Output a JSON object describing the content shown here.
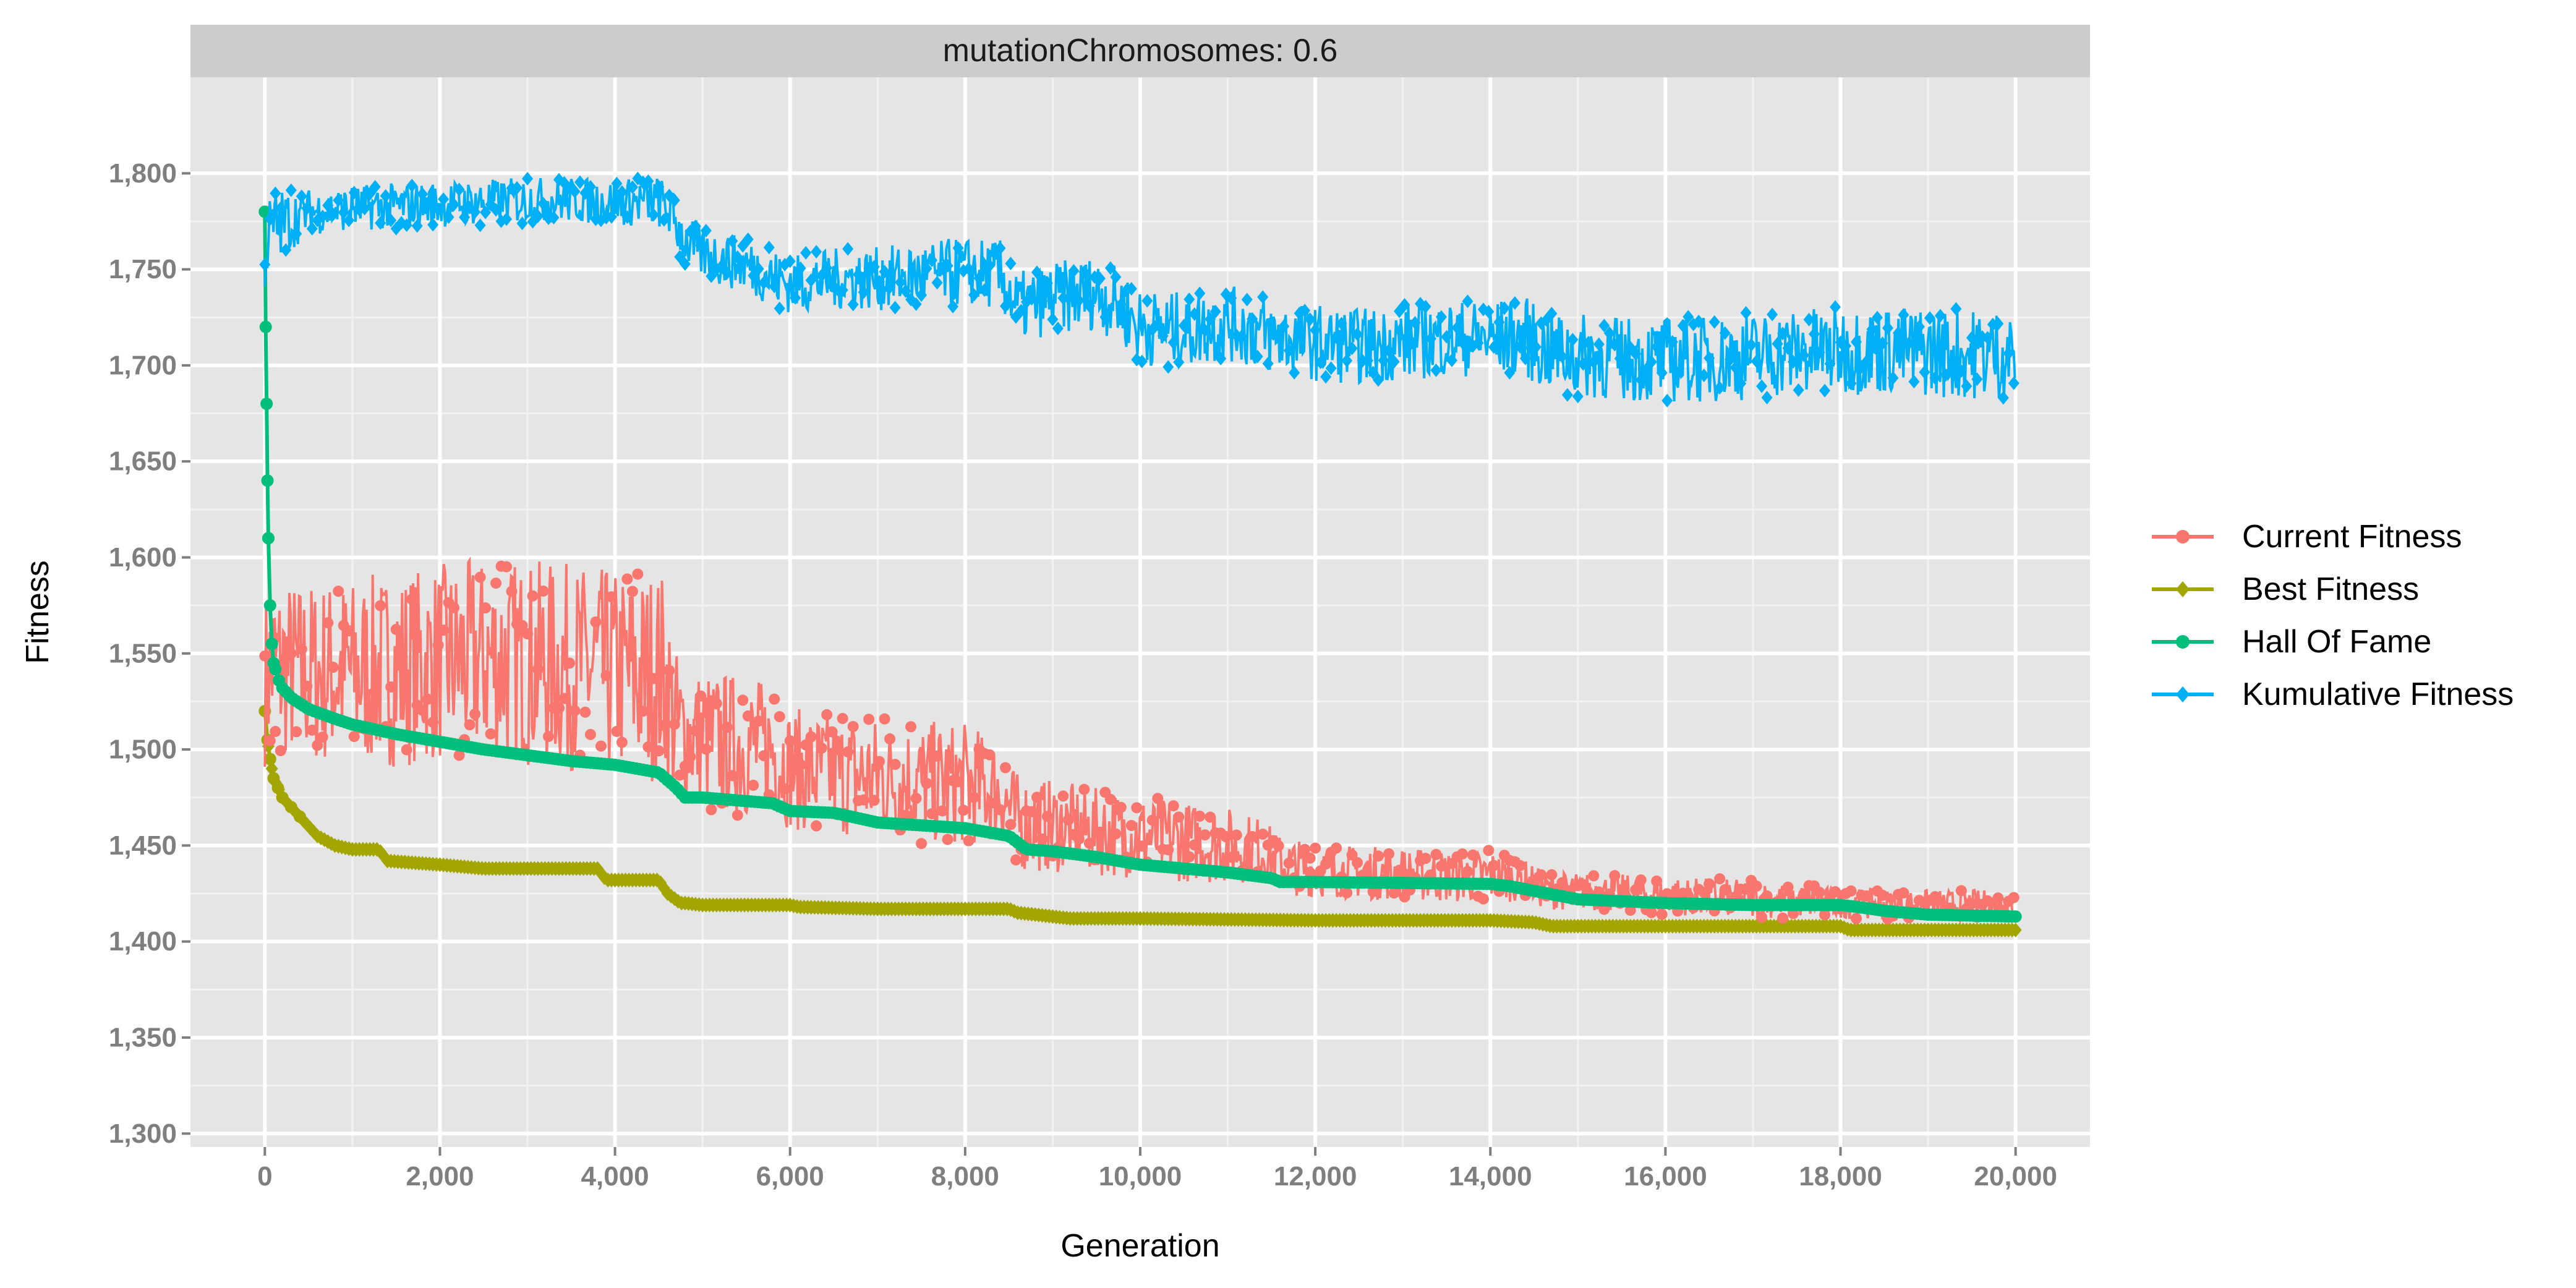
{
  "chart_data": {
    "type": "line",
    "facet_label": "mutationChromosomes: 0.6",
    "xlabel": "Generation",
    "ylabel": "Fitness",
    "xlim": [
      -850,
      20850
    ],
    "ylim": [
      1293,
      1850
    ],
    "x_ticks": [
      0,
      2000,
      4000,
      6000,
      8000,
      10000,
      12000,
      14000,
      16000,
      18000,
      20000
    ],
    "x_tick_labels": [
      "0",
      "2,000",
      "4,000",
      "6,000",
      "8,000",
      "10,000",
      "12,000",
      "14,000",
      "16,000",
      "18,000",
      "20,000"
    ],
    "y_ticks": [
      1300,
      1350,
      1400,
      1450,
      1500,
      1550,
      1600,
      1650,
      1700,
      1750,
      1800
    ],
    "y_tick_labels": [
      "1,300",
      "1,350",
      "1,400",
      "1,450",
      "1,500",
      "1,550",
      "1,600",
      "1,650",
      "1,700",
      "1,750",
      "1,800"
    ],
    "grid": true,
    "legend_position": "right",
    "series": [
      {
        "name": "Current Fitness",
        "color": "#F8766D",
        "marker": "circle",
        "band_spread": [
          [
            0,
            44
          ],
          [
            300,
            48
          ],
          [
            1000,
            50
          ],
          [
            2000,
            52
          ],
          [
            3000,
            54
          ],
          [
            4000,
            54
          ],
          [
            4500,
            56
          ],
          [
            4800,
            36
          ],
          [
            5500,
            38
          ],
          [
            6000,
            32
          ],
          [
            7000,
            32
          ],
          [
            8000,
            32
          ],
          [
            8500,
            26
          ],
          [
            9000,
            24
          ],
          [
            10000,
            22
          ],
          [
            11000,
            20
          ],
          [
            11500,
            16
          ],
          [
            12000,
            14
          ],
          [
            13000,
            14
          ],
          [
            14000,
            14
          ],
          [
            14500,
            10
          ],
          [
            15000,
            10
          ],
          [
            16000,
            10
          ],
          [
            17000,
            10
          ],
          [
            18000,
            8
          ],
          [
            19000,
            8
          ],
          [
            20000,
            8
          ]
        ],
        "x": [
          0,
          50,
          100,
          200,
          400,
          700,
          1000,
          1500,
          2000,
          2500,
          3000,
          3500,
          4000,
          4300,
          4550,
          4700,
          5000,
          5500,
          5800,
          6000,
          6500,
          7000,
          7500,
          8000,
          8400,
          8600,
          9000,
          9500,
          10000,
          10500,
          11000,
          11400,
          11600,
          12000,
          12500,
          13000,
          13500,
          14000,
          14400,
          14600,
          15000,
          15500,
          16000,
          16500,
          17000,
          17500,
          18000,
          18500,
          19000,
          19500,
          20000
        ],
        "values": [
          1535,
          1540,
          1545,
          1542,
          1540,
          1540,
          1540,
          1542,
          1545,
          1547,
          1545,
          1543,
          1540,
          1538,
          1540,
          1510,
          1505,
          1502,
          1500,
          1490,
          1487,
          1485,
          1483,
          1482,
          1478,
          1462,
          1460,
          1457,
          1455,
          1452,
          1450,
          1448,
          1440,
          1437,
          1436,
          1435,
          1434,
          1434,
          1432,
          1427,
          1426,
          1425,
          1424,
          1423,
          1422,
          1421,
          1420,
          1419,
          1419,
          1419,
          1419
        ]
      },
      {
        "name": "Best Fitness",
        "color": "#A3A500",
        "marker": "diamond",
        "x": [
          0,
          30,
          60,
          100,
          150,
          200,
          300,
          400,
          500,
          600,
          800,
          1000,
          1300,
          1400,
          2000,
          2500,
          3000,
          3800,
          3900,
          4500,
          4600,
          4750,
          4800,
          5000,
          6000,
          6100,
          7000,
          8000,
          8500,
          8600,
          9000,
          9200,
          10000,
          12000,
          14000,
          14500,
          14700,
          15000,
          16000,
          18000,
          18100,
          20000
        ],
        "values": [
          1520,
          1505,
          1495,
          1485,
          1480,
          1475,
          1470,
          1465,
          1460,
          1455,
          1450,
          1448,
          1448,
          1442,
          1440,
          1438,
          1438,
          1438,
          1432,
          1432,
          1425,
          1420,
          1420,
          1419,
          1419,
          1418,
          1417,
          1417,
          1417,
          1415,
          1413,
          1412,
          1412,
          1411,
          1411,
          1410,
          1408,
          1408,
          1408,
          1408,
          1406,
          1406
        ]
      },
      {
        "name": "Hall Of Fame",
        "color": "#00BF7D",
        "marker": "circle",
        "x": [
          0,
          10,
          20,
          30,
          40,
          60,
          80,
          100,
          150,
          200,
          300,
          500,
          800,
          1000,
          1500,
          2000,
          2500,
          3000,
          3500,
          4000,
          4500,
          4700,
          4800,
          5000,
          5800,
          6000,
          6500,
          7000,
          8000,
          8500,
          8700,
          9000,
          9500,
          10000,
          11000,
          11500,
          11600,
          12000,
          14000,
          14200,
          15000,
          16000,
          17000,
          18000,
          18200,
          18500,
          19000,
          20000
        ],
        "values": [
          1780,
          1720,
          1680,
          1640,
          1610,
          1575,
          1555,
          1545,
          1537,
          1532,
          1527,
          1521,
          1516,
          1513,
          1508,
          1504,
          1500,
          1497,
          1494,
          1492,
          1488,
          1480,
          1475,
          1475,
          1472,
          1468,
          1467,
          1462,
          1459,
          1455,
          1448,
          1447,
          1444,
          1440,
          1436,
          1433,
          1431,
          1431,
          1430,
          1429,
          1422,
          1420,
          1419,
          1419,
          1418,
          1416,
          1414,
          1413
        ]
      },
      {
        "name": "Kumulative Fitness",
        "color": "#00B0F6",
        "marker": "diamond",
        "band_spread": [
          [
            0,
            22
          ],
          [
            500,
            12
          ],
          [
            2000,
            12
          ],
          [
            4000,
            12
          ],
          [
            4600,
            14
          ],
          [
            5000,
            14
          ],
          [
            8000,
            18
          ],
          [
            10000,
            20
          ],
          [
            14000,
            20
          ],
          [
            15000,
            22
          ],
          [
            20000,
            24
          ]
        ],
        "x": [
          0,
          50,
          100,
          300,
          500,
          1000,
          1500,
          2000,
          2500,
          3000,
          3500,
          4000,
          4500,
          4600,
          4800,
          5000,
          5500,
          6000,
          6500,
          7000,
          7500,
          8000,
          8400,
          8600,
          9000,
          9500,
          9800,
          10000,
          10500,
          11000,
          11500,
          12000,
          12500,
          13000,
          13500,
          14000,
          14400,
          14600,
          15000,
          15500,
          16000,
          16500,
          17000,
          17500,
          18000,
          18500,
          19000,
          19500,
          20000
        ],
        "values": [
          1760,
          1768,
          1772,
          1776,
          1780,
          1782,
          1783,
          1784,
          1785,
          1786,
          1786,
          1785,
          1785,
          1782,
          1765,
          1758,
          1752,
          1742,
          1745,
          1745,
          1747,
          1749,
          1747,
          1730,
          1735,
          1738,
          1730,
          1720,
          1718,
          1722,
          1715,
          1712,
          1710,
          1712,
          1714,
          1714,
          1715,
          1708,
          1705,
          1703,
          1703,
          1703,
          1705,
          1707,
          1708,
          1708,
          1707,
          1706,
          1706
        ]
      }
    ]
  }
}
